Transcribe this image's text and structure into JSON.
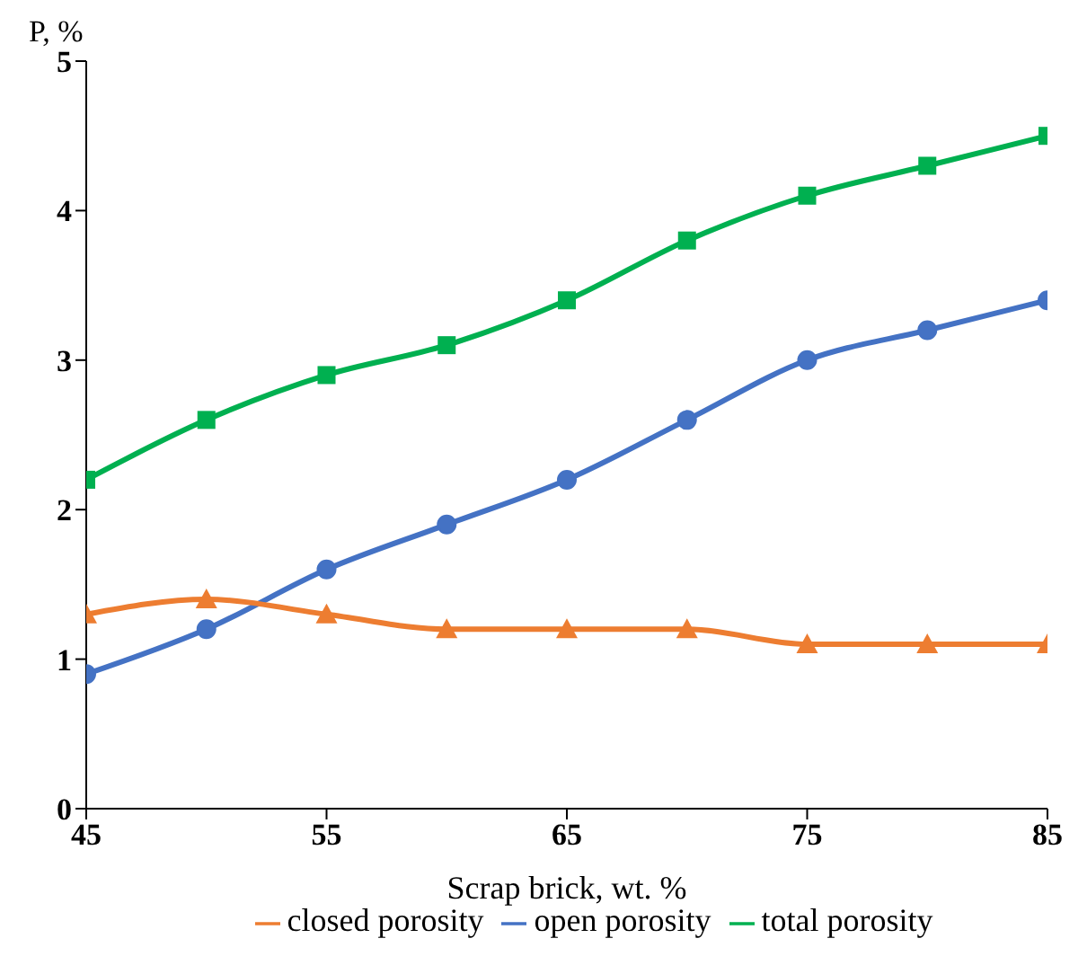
{
  "chart_data": {
    "type": "line",
    "xlabel": "Scrap brick, wt. %",
    "ylabel": "P, %",
    "x": [
      45,
      50,
      55,
      60,
      65,
      70,
      75,
      80,
      85
    ],
    "series": [
      {
        "name": "open porosity",
        "color": "#4472c4",
        "marker": "circle",
        "values": [
          0.9,
          1.2,
          1.6,
          1.9,
          2.2,
          2.6,
          3.0,
          3.2,
          3.4
        ]
      },
      {
        "name": "closed porosity",
        "color": "#ed7d31",
        "marker": "triangle",
        "values": [
          1.3,
          1.4,
          1.3,
          1.2,
          1.2,
          1.2,
          1.1,
          1.1,
          1.1
        ]
      },
      {
        "name": "total porosity",
        "color": "#00b050",
        "marker": "square",
        "values": [
          2.2,
          2.6,
          2.9,
          3.1,
          3.4,
          3.8,
          4.1,
          4.3,
          4.5
        ]
      }
    ],
    "xlim": [
      45,
      85
    ],
    "xticks": [
      45,
      55,
      65,
      75,
      85
    ],
    "ylim": [
      0,
      5
    ],
    "yticks": [
      0,
      1,
      2,
      3,
      4,
      5
    ],
    "grid": false,
    "legend": "bottom"
  }
}
